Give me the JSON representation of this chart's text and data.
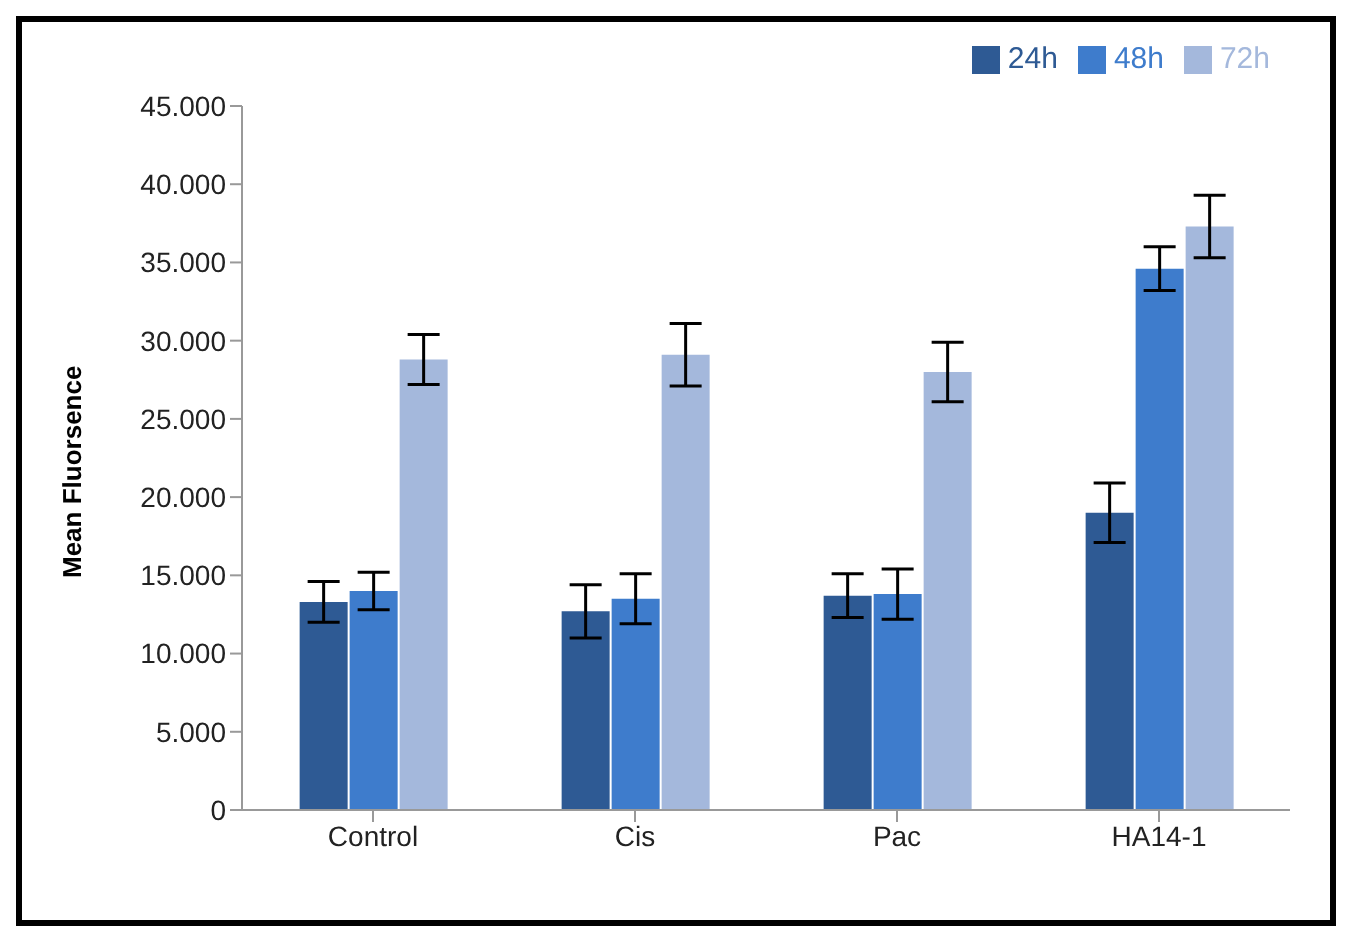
{
  "chart_data": {
    "type": "bar",
    "ylabel": "Mean Fluorsence",
    "categories": [
      "Control",
      "Cis",
      "Pac",
      "HA14-1"
    ],
    "series": [
      {
        "name": "24h",
        "color": "#2e5a94",
        "values": [
          13300,
          12700,
          13700,
          19000
        ],
        "errors": [
          1300,
          1700,
          1400,
          1900
        ]
      },
      {
        "name": "48h",
        "color": "#3e7ccc",
        "values": [
          14000,
          13500,
          13800,
          34600
        ],
        "errors": [
          1200,
          1600,
          1600,
          1400
        ]
      },
      {
        "name": "72h",
        "color": "#a4b8dc",
        "values": [
          28800,
          29100,
          28000,
          37300
        ],
        "errors": [
          1600,
          2000,
          1900,
          2000
        ]
      }
    ],
    "ylim": [
      0,
      45000
    ],
    "yticks": [
      {
        "value": 0,
        "label": "0"
      },
      {
        "value": 5000,
        "label": "5.000"
      },
      {
        "value": 10000,
        "label": "10.000"
      },
      {
        "value": 15000,
        "label": "15.000"
      },
      {
        "value": 20000,
        "label": "20.000"
      },
      {
        "value": 25000,
        "label": "25.000"
      },
      {
        "value": 30000,
        "label": "30.000"
      },
      {
        "value": 35000,
        "label": "35.000"
      },
      {
        "value": 40000,
        "label": "40.000"
      },
      {
        "value": 45000,
        "label": "45.000"
      }
    ],
    "grid": false,
    "legend": "top right"
  }
}
